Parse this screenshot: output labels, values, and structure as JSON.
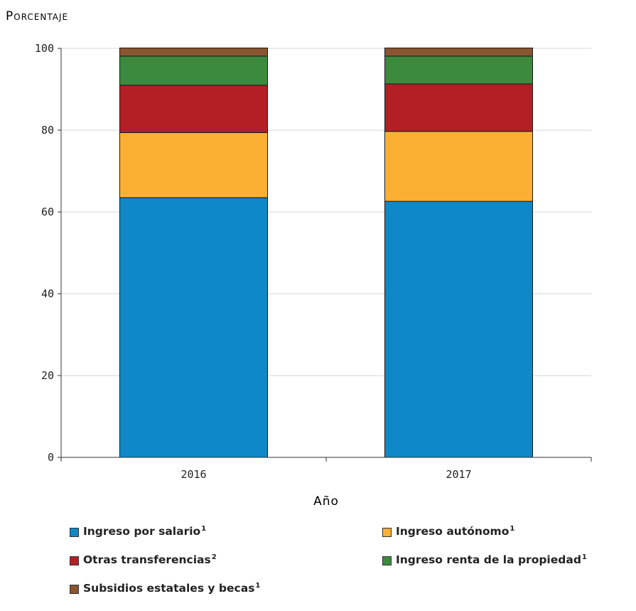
{
  "chart_data": {
    "type": "bar",
    "stacked": true,
    "ylabel": "Porcentaje",
    "xlabel": "Año",
    "categories": [
      "2016",
      "2017"
    ],
    "ylim": [
      0,
      100
    ],
    "yticks": [
      "0",
      "20",
      "40",
      "60",
      "80",
      "100"
    ],
    "grid": true,
    "series": [
      {
        "name": "Ingreso por salario",
        "note": "1",
        "values": [
          63.5,
          62.6
        ],
        "color": "#0e88c6"
      },
      {
        "name": "Ingreso autónomo",
        "note": "1",
        "values": [
          15.9,
          17.1
        ],
        "color": "#fbb034"
      },
      {
        "name": "Otras transferencias",
        "note": "2",
        "values": [
          11.6,
          11.6
        ],
        "color": "#b22026"
      },
      {
        "name": "Ingreso renta de la propiedad",
        "note": "1",
        "values": [
          7.1,
          6.8
        ],
        "color": "#3b8a3e"
      },
      {
        "name": "Subsidios estatales y becas",
        "note": "1",
        "values": [
          2.0,
          2.0
        ],
        "color": "#8a5530"
      }
    ]
  }
}
